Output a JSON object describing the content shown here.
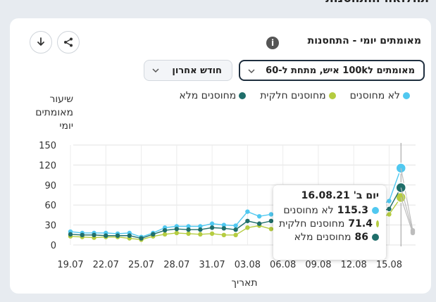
{
  "page": {
    "heading": "תחלואה והתחסנות"
  },
  "card": {
    "title": "מאומתים יומי - התחסנות",
    "info_icon": "i",
    "metric_select": "מאומתים ל100k איש, מתחת ל-60",
    "period_select": "חודש אחרון",
    "colors": {
      "unvaccinated": "#50c8f0",
      "partial": "#b5cc40",
      "full": "#1f6e6a",
      "grid": "#e3e3e3",
      "cursor": "#9a9a9a",
      "last": "#bdbdbd"
    }
  },
  "chart_data": {
    "type": "line",
    "title": "",
    "xlabel": "תאריך",
    "ylabel": "שיעור מאומתים יומי",
    "ylim": [
      0,
      150
    ],
    "yticks": [
      0,
      30,
      60,
      90,
      120,
      150
    ],
    "x": [
      "19.07",
      "20.07",
      "21.07",
      "22.07",
      "23.07",
      "24.07",
      "25.07",
      "26.07",
      "27.07",
      "28.07",
      "29.07",
      "30.07",
      "31.07",
      "01.08",
      "02.08",
      "03.08",
      "04.08",
      "05.08",
      "06.08",
      "07.08",
      "08.08",
      "09.08",
      "10.08",
      "11.08",
      "12.08",
      "13.08",
      "14.08",
      "15.08",
      "16.08",
      "17.08"
    ],
    "xticks": [
      "19.07",
      "22.07",
      "25.07",
      "28.07",
      "31.07",
      "03.08",
      "06.08",
      "09.08",
      "12.08",
      "15.08"
    ],
    "series": [
      {
        "name": "לא מחוסנים",
        "key": "unvaccinated",
        "values": [
          20,
          18,
          18,
          18,
          17,
          18,
          12,
          18,
          26,
          28,
          28,
          28,
          32,
          30,
          29,
          50,
          43,
          46,
          46,
          48,
          46,
          48,
          50,
          50,
          52,
          55,
          58,
          66,
          115.3,
          22
        ]
      },
      {
        "name": "מחוסנים חלקית",
        "key": "partial",
        "values": [
          13,
          12,
          11,
          12,
          12,
          10,
          8,
          13,
          16,
          18,
          17,
          16,
          17,
          15,
          15,
          26,
          29,
          24,
          26,
          28,
          28,
          30,
          32,
          34,
          36,
          38,
          40,
          46,
          71.4,
          18
        ]
      },
      {
        "name": "מחוסנים מלא",
        "key": "full",
        "values": [
          16,
          15,
          15,
          14,
          14,
          14,
          10,
          16,
          22,
          24,
          23,
          23,
          26,
          25,
          23,
          36,
          32,
          36,
          38,
          38,
          38,
          40,
          42,
          44,
          46,
          48,
          50,
          54,
          86,
          20
        ]
      }
    ],
    "highlight_index": 28,
    "legend": "top-right",
    "grid": true
  },
  "tooltip": {
    "date": "יום ב' 16.08.21",
    "rows": [
      {
        "value": "115.3",
        "label": "לא מחוסנים"
      },
      {
        "value": "71.4",
        "label": "מחוסנים חלקית"
      },
      {
        "value": "86",
        "label": "מחוסנים מלא"
      }
    ]
  }
}
